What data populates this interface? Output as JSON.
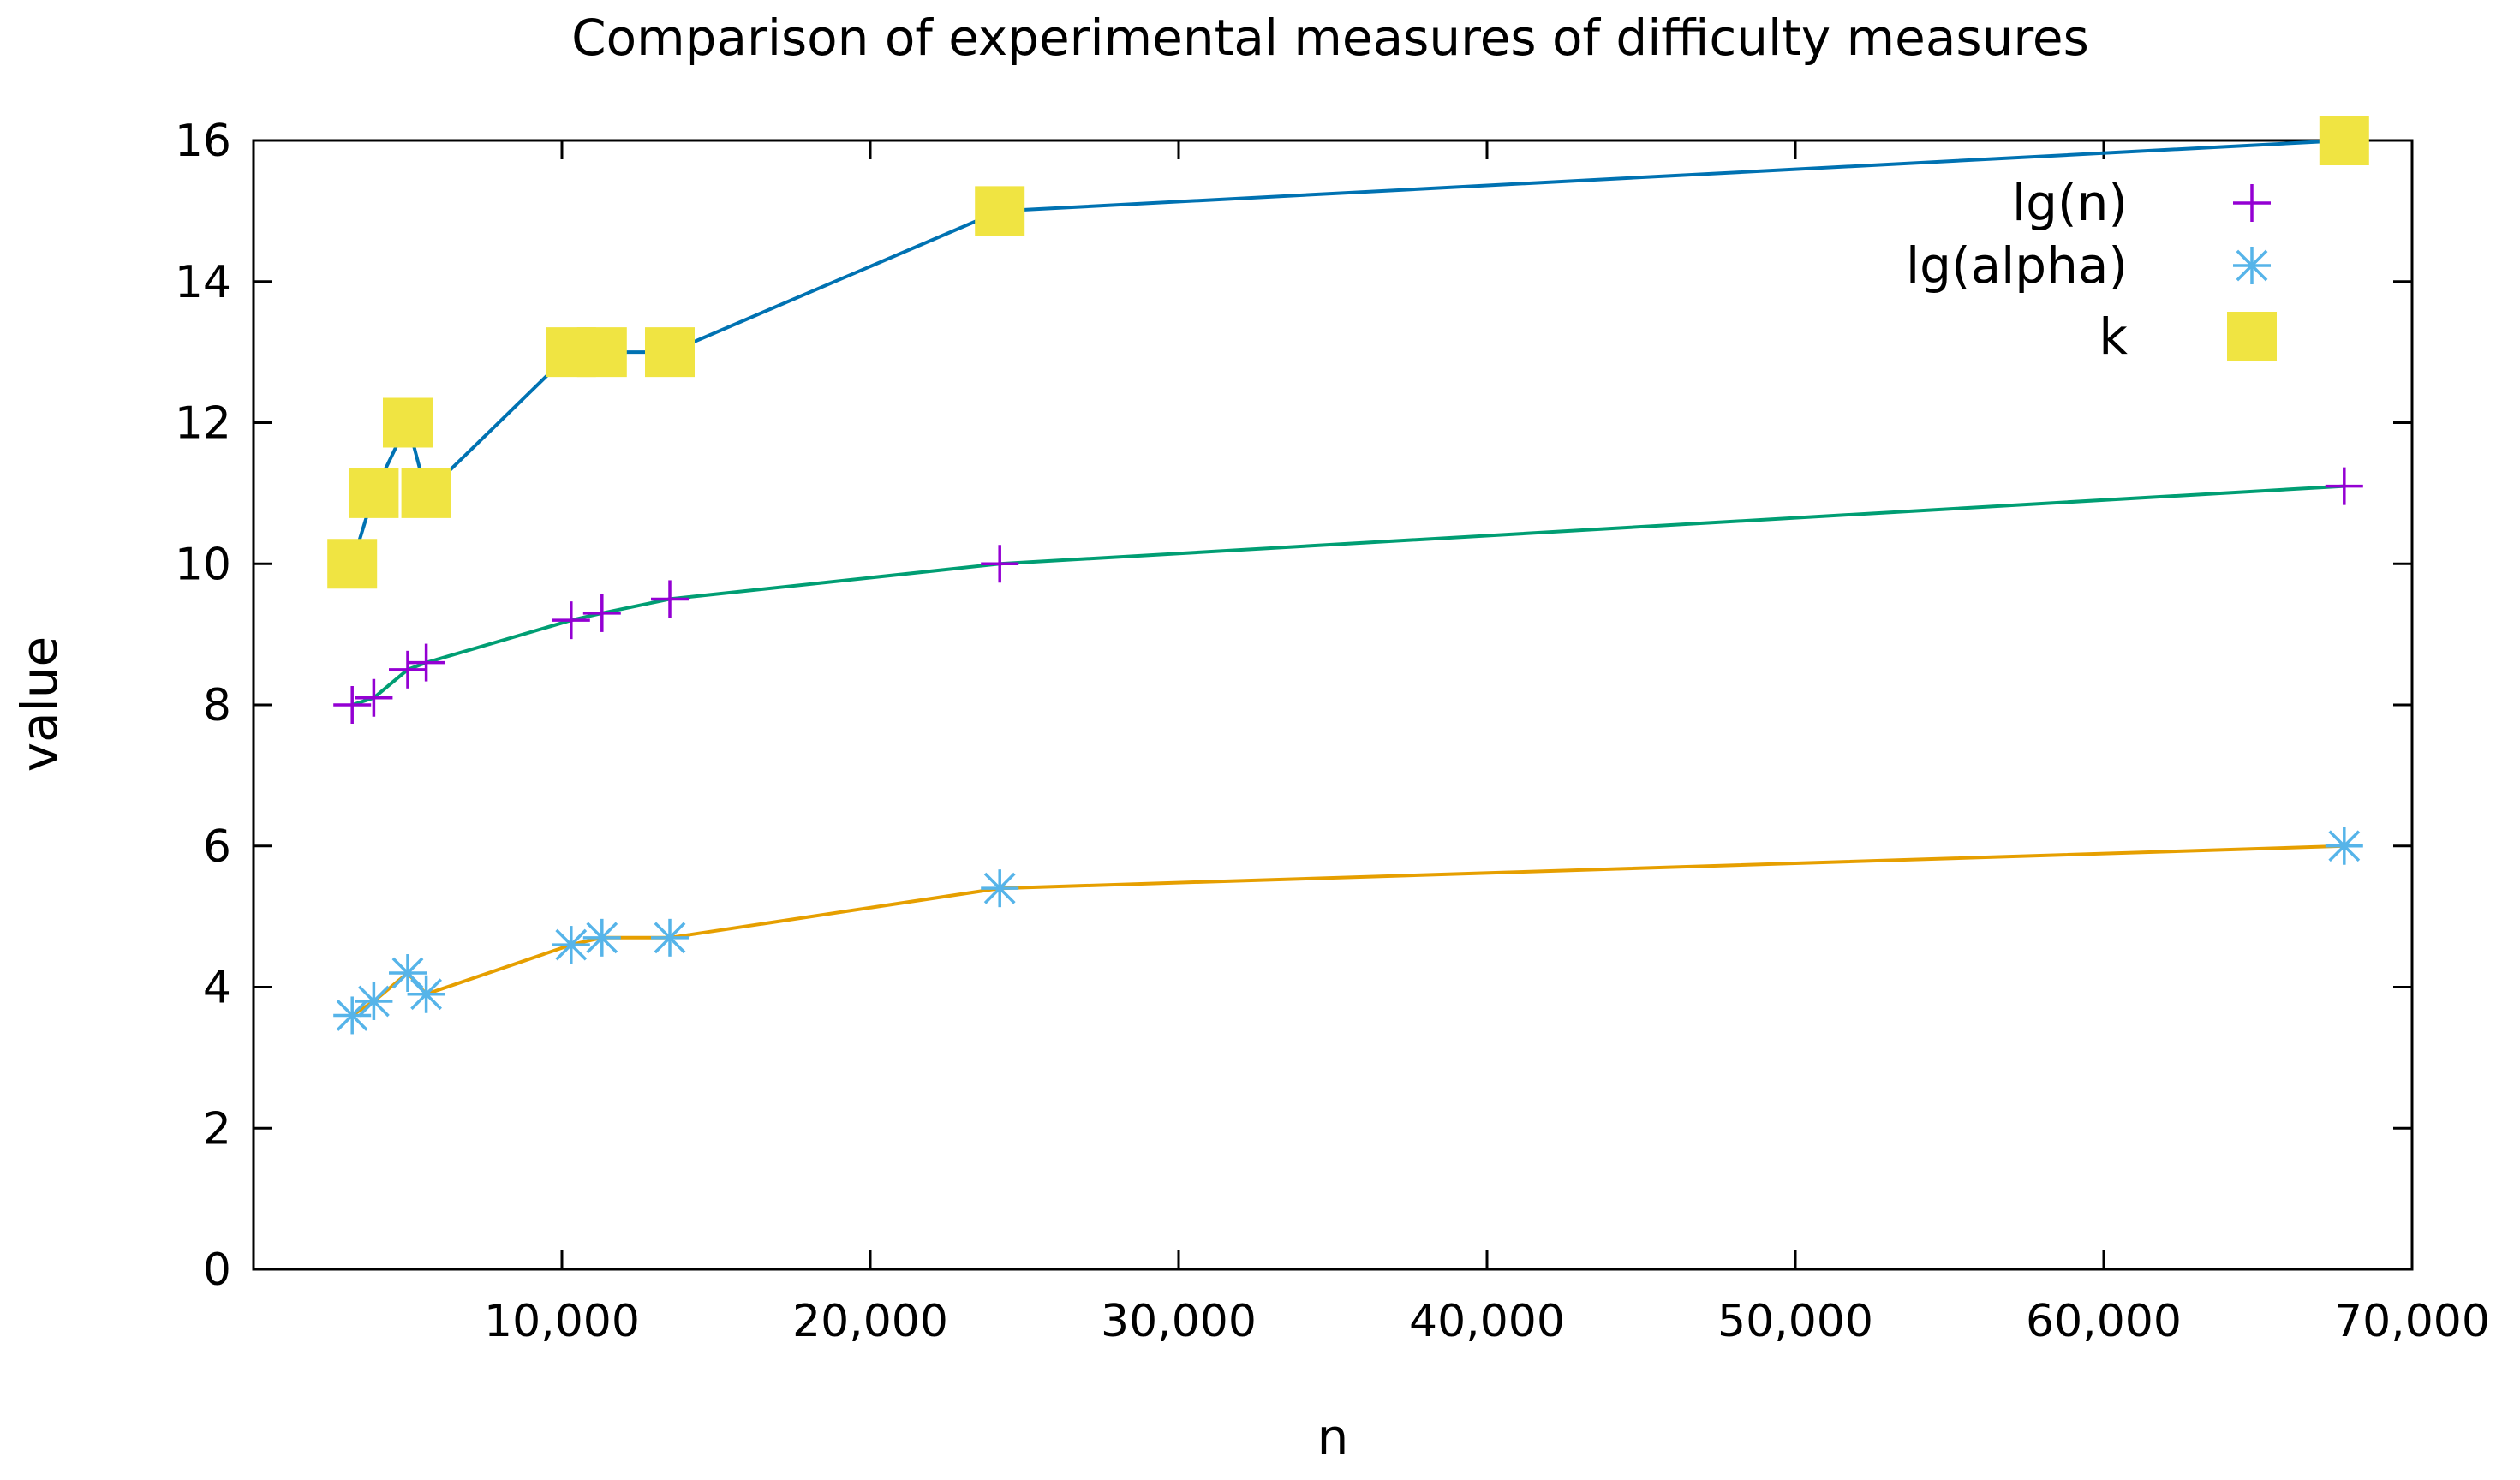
{
  "chart_data": {
    "type": "line",
    "title": "Comparison of experimental measures of difficulty measures",
    "xlabel": "n",
    "ylabel": "value",
    "xlim": [
      0,
      70000
    ],
    "ylim": [
      0,
      16
    ],
    "xticks": [
      10000,
      20000,
      30000,
      40000,
      50000,
      60000,
      70000
    ],
    "xtick_labels": [
      "10,000",
      "20,000",
      "30,000",
      "40,000",
      "50,000",
      "60,000",
      "70,000"
    ],
    "yticks": [
      0,
      2,
      4,
      6,
      8,
      10,
      12,
      14,
      16
    ],
    "ytick_labels": [
      "0",
      "2",
      "4",
      "6",
      "8",
      "10",
      "12",
      "14",
      "16"
    ],
    "grid": false,
    "legend_position": "top-right",
    "series": [
      {
        "name": "lg(n)",
        "marker": "plus",
        "marker_color": "#9400d3",
        "line_color": "#009e73",
        "x": [
          3200,
          3900,
          5000,
          5600,
          10300,
          11300,
          13500,
          24200,
          67800
        ],
        "values": [
          8.0,
          8.1,
          8.5,
          8.6,
          9.2,
          9.3,
          9.5,
          10.0,
          11.1
        ]
      },
      {
        "name": "lg(alpha)",
        "marker": "asterisk",
        "marker_color": "#56b4e9",
        "line_color": "#e69f00",
        "x": [
          3200,
          3900,
          5000,
          5600,
          10300,
          11300,
          13500,
          24200,
          67800
        ],
        "values": [
          3.6,
          3.8,
          4.2,
          3.9,
          4.6,
          4.7,
          4.7,
          5.4,
          6.0
        ]
      },
      {
        "name": "k",
        "marker": "square",
        "marker_color": "#f0e442",
        "line_color": "#0072b2",
        "x": [
          3200,
          3900,
          5000,
          5600,
          10300,
          11300,
          13500,
          24200,
          67800
        ],
        "values": [
          10,
          11,
          12,
          11,
          13,
          13,
          13,
          15,
          16
        ]
      }
    ]
  }
}
